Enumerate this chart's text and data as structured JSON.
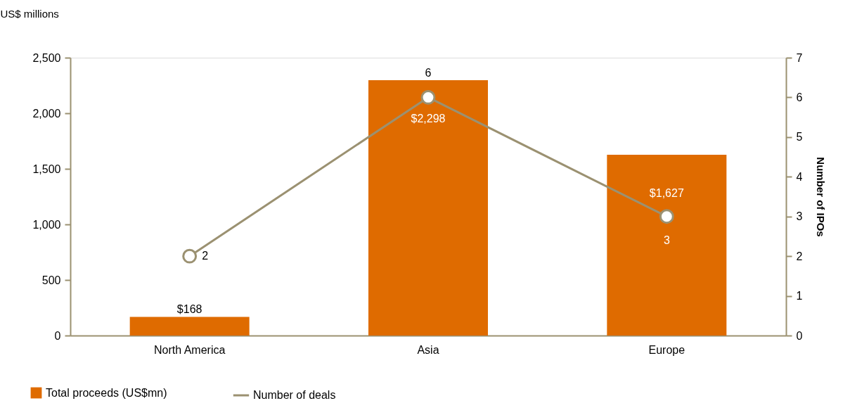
{
  "chart_data": {
    "type": "bar",
    "categories": [
      "North America",
      "Asia",
      "Europe"
    ],
    "series": [
      {
        "name": "Total proceeds (US$mn)",
        "color": "#df6b00",
        "values": [
          168,
          2298,
          1627
        ],
        "value_labels": [
          "$168",
          "$2,298",
          "$1,627"
        ]
      },
      {
        "name": "Number of deals",
        "type": "line",
        "axis": "y2",
        "color": "#9b9171",
        "values": [
          2,
          6,
          3
        ],
        "marker": "circle",
        "data_labels": true
      }
    ],
    "ylabel": "US$ millions",
    "y2label": "Number of IPOs",
    "ylim": [
      0,
      2500
    ],
    "yticks": [
      0,
      500,
      {
        "value": 1000,
        "label": "1,000"
      },
      {
        "value": 1500,
        "label": "1,500"
      },
      {
        "value": 2000,
        "label": "2,000"
      },
      {
        "value": 2500,
        "label": "2,500"
      }
    ],
    "y2lim": [
      0,
      7
    ],
    "y2ticks": [
      0,
      1,
      2,
      3,
      4,
      5,
      6,
      7
    ],
    "grid": false,
    "legend": "bottom left"
  }
}
